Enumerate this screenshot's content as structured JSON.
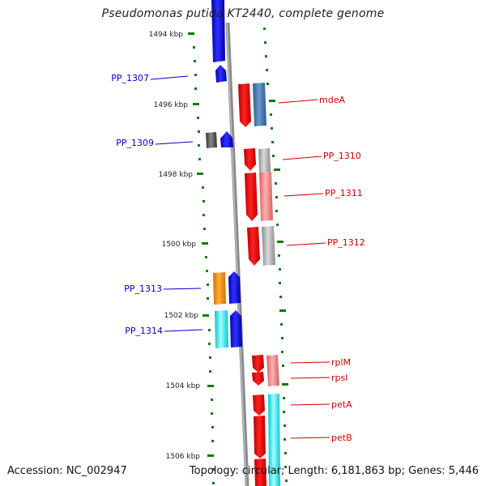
{
  "title": "Pseudomonas putida KT2440, complete genome",
  "footer": {
    "accession": "Accession: NC_002947",
    "topology": "Topology: circular; Length: 6,181,863 bp; Genes: 5,446"
  },
  "ticks": [
    "1494 kbp",
    "1496 kbp",
    "1498 kbp",
    "1500 kbp",
    "1502 kbp",
    "1504 kbp",
    "1506 kbp"
  ],
  "colors": {
    "minus_label": "#0000cc",
    "plus_label": "#cc0000",
    "tick": "#0a7a0a",
    "backbone": "#8a8a8a"
  },
  "left_labels": [
    "PP_1307",
    "PP_1309",
    "PP_1313",
    "PP_1314"
  ],
  "right_labels": [
    "mdeA",
    "PP_1310",
    "PP_1311",
    "PP_1312",
    "rplM",
    "rpsI",
    "petA",
    "petB"
  ]
}
